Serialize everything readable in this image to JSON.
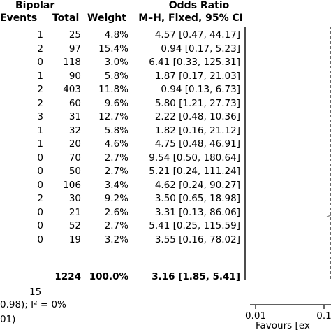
{
  "header": {
    "group_label": "Bipolar",
    "col_events": "Events",
    "col_total": "Total",
    "col_weight": "Weight",
    "or_label": "Odds Ratio",
    "or_method": "M–H, Fixed, 95% CI"
  },
  "rows": [
    {
      "events": "1",
      "total": "25",
      "weight": "4.8%",
      "ci": "4.57 [0.47, 44.17]"
    },
    {
      "events": "2",
      "total": "97",
      "weight": "15.4%",
      "ci": "0.94 [0.17, 5.23]"
    },
    {
      "events": "0",
      "total": "118",
      "weight": "3.0%",
      "ci": "6.41 [0.33, 125.31]"
    },
    {
      "events": "1",
      "total": "90",
      "weight": "5.8%",
      "ci": "1.87 [0.17, 21.03]"
    },
    {
      "events": "2",
      "total": "403",
      "weight": "11.8%",
      "ci": "0.94 [0.13, 6.73]"
    },
    {
      "events": "2",
      "total": "60",
      "weight": "9.6%",
      "ci": "5.80 [1.21, 27.73]"
    },
    {
      "events": "3",
      "total": "31",
      "weight": "12.7%",
      "ci": "2.22 [0.48, 10.36]"
    },
    {
      "events": "1",
      "total": "32",
      "weight": "5.8%",
      "ci": "1.82 [0.16, 21.12]"
    },
    {
      "events": "1",
      "total": "20",
      "weight": "4.6%",
      "ci": "4.75 [0.48, 46.91]"
    },
    {
      "events": "0",
      "total": "70",
      "weight": "2.7%",
      "ci": "9.54 [0.50, 180.64]"
    },
    {
      "events": "0",
      "total": "50",
      "weight": "2.7%",
      "ci": "5.21 [0.24, 111.24]"
    },
    {
      "events": "0",
      "total": "106",
      "weight": "3.4%",
      "ci": "4.62 [0.24, 90.27]"
    },
    {
      "events": "2",
      "total": "30",
      "weight": "9.2%",
      "ci": "3.50 [0.65, 18.98]"
    },
    {
      "events": "0",
      "total": "21",
      "weight": "2.6%",
      "ci": "3.31 [0.13, 86.06]"
    },
    {
      "events": "0",
      "total": "52",
      "weight": "2.7%",
      "ci": "5.41 [0.25, 115.59]"
    },
    {
      "events": "0",
      "total": "19",
      "weight": "3.2%",
      "ci": "3.55 [0.16, 78.02]"
    }
  ],
  "totals": {
    "total": "1224",
    "weight": "100.0%",
    "ci": "3.16 [1.85, 5.41]"
  },
  "footer": {
    "events_total": "15",
    "heterogeneity_tail": "0.98); I² = 0%",
    "overall_tail": "01)"
  },
  "chart_data": {
    "type": "forest",
    "ylabel": "",
    "axis": {
      "scale": "log",
      "ticks": [
        0.01,
        0.1
      ],
      "tick_labels": [
        "0.01",
        "0.1"
      ],
      "favours_label": "Favours [ex"
    }
  }
}
